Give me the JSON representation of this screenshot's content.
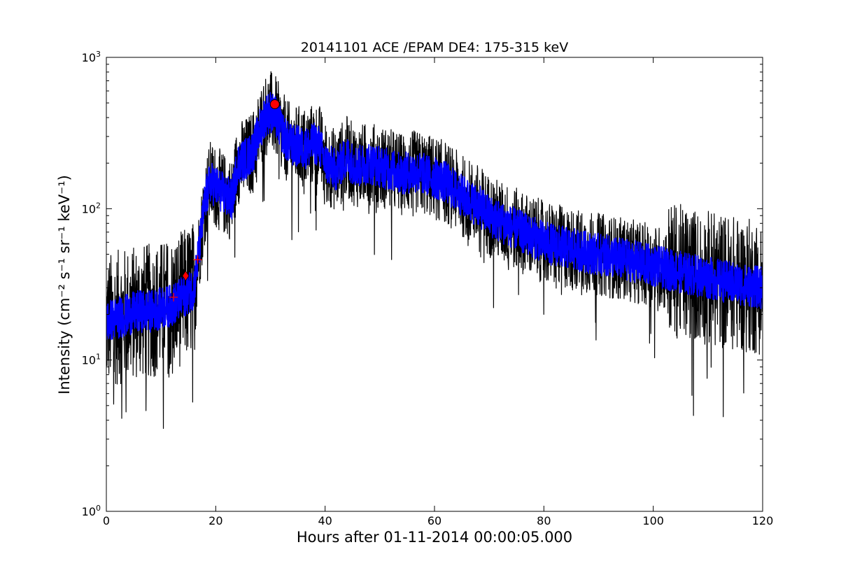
{
  "chart_data": {
    "type": "line",
    "title": "20141101 ACE /EPAM DE4: 175-315 keV",
    "xlabel": "Hours after 01-11-2014 00:00:05.000",
    "ylabel": "Intensity (cm⁻² s⁻¹ sr⁻¹ keV⁻¹)",
    "xlim": [
      0,
      120
    ],
    "ylim": [
      1,
      1000
    ],
    "yscale": "log",
    "grid": false,
    "x_ticks": [
      "0",
      "20",
      "40",
      "60",
      "80",
      "100",
      "120"
    ],
    "y_ticks": [
      {
        "base": "10",
        "exp": "0"
      },
      {
        "base": "10",
        "exp": "1"
      },
      {
        "base": "10",
        "exp": "2"
      },
      {
        "base": "10",
        "exp": "3"
      }
    ],
    "series": [
      {
        "color": "#000000",
        "style": "raw 1-min intensity (noisy)",
        "x": [
          0,
          2,
          4,
          6,
          8,
          10,
          12,
          14,
          16,
          17,
          18,
          19,
          20,
          21,
          22,
          23,
          24,
          25,
          26,
          27,
          28,
          29,
          30,
          31,
          32,
          33,
          34,
          35,
          36,
          37,
          38,
          39,
          40,
          41,
          42,
          43,
          44,
          45,
          46,
          48,
          50,
          52,
          54,
          56,
          58,
          60,
          62,
          64,
          66,
          68,
          70,
          72,
          74,
          76,
          78,
          80,
          85,
          90,
          95,
          100,
          105,
          110,
          115,
          120
        ],
        "y": [
          18,
          19,
          20,
          21,
          21,
          22,
          23,
          26,
          30,
          55,
          110,
          150,
          140,
          130,
          120,
          115,
          200,
          210,
          220,
          250,
          330,
          410,
          440,
          400,
          330,
          280,
          260,
          260,
          250,
          255,
          270,
          260,
          200,
          190,
          180,
          200,
          220,
          200,
          190,
          200,
          190,
          180,
          170,
          175,
          170,
          160,
          150,
          130,
          115,
          105,
          90,
          82,
          76,
          70,
          65,
          60,
          54,
          50,
          46,
          42,
          38,
          35,
          32,
          30
        ]
      },
      {
        "color": "#0000ff",
        "style": "smoothed intensity",
        "x": [
          0,
          2,
          4,
          6,
          8,
          10,
          12,
          14,
          16,
          17,
          18,
          19,
          20,
          21,
          22,
          23,
          24,
          25,
          26,
          27,
          28,
          29,
          30,
          31,
          32,
          33,
          34,
          35,
          36,
          37,
          38,
          39,
          40,
          41,
          42,
          43,
          44,
          45,
          46,
          48,
          50,
          52,
          54,
          56,
          58,
          60,
          62,
          64,
          66,
          68,
          70,
          72,
          74,
          76,
          78,
          80,
          85,
          90,
          95,
          100,
          105,
          110,
          115,
          120
        ],
        "y": [
          18,
          19,
          20,
          21,
          21,
          22,
          23,
          26,
          30,
          55,
          110,
          150,
          140,
          130,
          120,
          115,
          200,
          210,
          220,
          250,
          330,
          410,
          440,
          400,
          330,
          280,
          260,
          260,
          250,
          255,
          270,
          260,
          200,
          190,
          180,
          200,
          220,
          200,
          190,
          200,
          190,
          180,
          170,
          175,
          170,
          160,
          150,
          130,
          115,
          105,
          90,
          82,
          76,
          70,
          65,
          60,
          54,
          50,
          46,
          42,
          38,
          35,
          32,
          30
        ]
      }
    ],
    "markers": [
      {
        "shape": "plus",
        "color": "#ff0000",
        "x": 12.3,
        "y": 26
      },
      {
        "shape": "diamond",
        "color": "#ff0000",
        "x": 14.5,
        "y": 36
      },
      {
        "shape": "plus",
        "color": "#ff0000",
        "x": 16.7,
        "y": 46
      },
      {
        "shape": "circle",
        "color": "#ff0000",
        "x": 30.8,
        "y": 490
      }
    ]
  }
}
